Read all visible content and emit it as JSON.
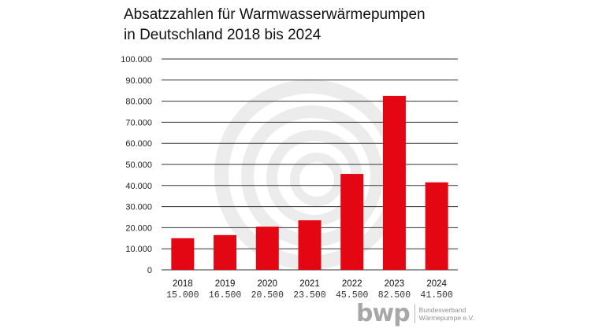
{
  "title": {
    "line1": "Absatzzahlen für Warmwasserwärmepumpen",
    "line2": "in Deutschland 2018 bis 2024"
  },
  "chart_data": {
    "type": "bar",
    "title": "Absatzzahlen für Warmwasserwärmepumpen in Deutschland 2018 bis 2024",
    "xlabel": "",
    "ylabel": "",
    "categories": [
      "2018",
      "2019",
      "2020",
      "2021",
      "2022",
      "2023",
      "2024"
    ],
    "values": [
      15000,
      16500,
      20500,
      23500,
      45500,
      82500,
      41500
    ],
    "value_labels": [
      "15.000",
      "16.500",
      "20.500",
      "23.500",
      "45.500",
      "82.500",
      "41.500"
    ],
    "ylim": [
      0,
      100000
    ],
    "yticks": [
      0,
      10000,
      20000,
      30000,
      40000,
      50000,
      60000,
      70000,
      80000,
      90000,
      100000
    ],
    "ytick_labels": [
      "0",
      "10.000",
      "20.000",
      "30.000",
      "40.000",
      "50.000",
      "60.000",
      "70.000",
      "80.000",
      "90.000",
      "100.000"
    ],
    "grid": true,
    "bar_color": "#e30613",
    "grid_color": "#333333"
  },
  "logo": {
    "mark": "bwp",
    "line1": "Bundesverband",
    "line2": "Wärmepumpe e.V."
  }
}
